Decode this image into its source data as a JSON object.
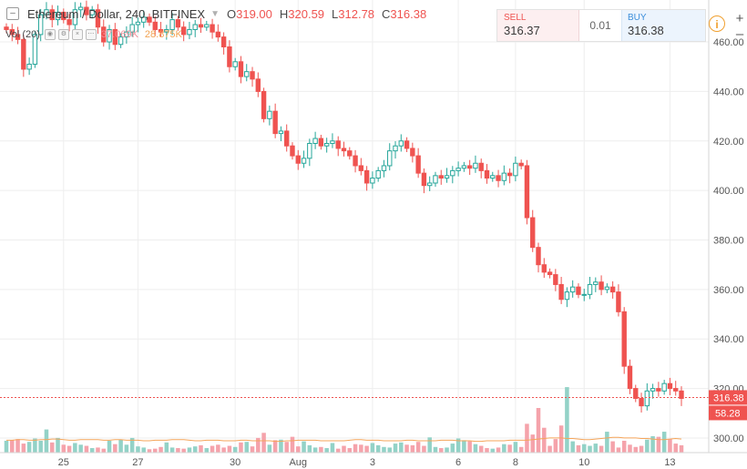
{
  "header": {
    "collapse_symbol": "–",
    "title": "Ethereum / Dollar, 240, BITFINEX",
    "open_label": "O",
    "open": "319.00",
    "high_label": "H",
    "high": "320.59",
    "low_label": "L",
    "low": "312.78",
    "close_label": "C",
    "close": "316.38"
  },
  "volume_indicator": {
    "label": "Vol (20)",
    "value_1": "37.069K",
    "value_2": "28.875K"
  },
  "trade_panel": {
    "sell_label": "SELL",
    "sell_price": "316.37",
    "spread": "0.01",
    "buy_label": "BUY",
    "buy_price": "316.38"
  },
  "controls": {
    "info_symbol": "i",
    "zoom_in": "+",
    "zoom_out": "–"
  },
  "colors": {
    "up": "#26a69a",
    "down": "#ef5350",
    "volume_up": "#93d2c7",
    "volume_down": "#f5a3ab",
    "volume_ma": "#f5a55a",
    "last_price_line": "#ef5350",
    "grid": "#eeeeee"
  },
  "chart_data": {
    "type": "candlestick",
    "title": "Ethereum / Dollar, 240, BITFINEX",
    "ylim": [
      293,
      474
    ],
    "y_ticks": [
      "300.00",
      "320.00",
      "340.00",
      "360.00",
      "380.00",
      "400.00",
      "420.00",
      "440.00",
      "460.00"
    ],
    "x_tick_labels": [
      "25",
      "27",
      "30",
      "Aug",
      "3",
      "6",
      "8",
      "10",
      "13"
    ],
    "last_price_label": "316.38",
    "volume_label": "58.28",
    "price": [
      465,
      463,
      461,
      449,
      451,
      463,
      471,
      473,
      469,
      472,
      469,
      467,
      473,
      474,
      471,
      473,
      466,
      460,
      465,
      459,
      462,
      464,
      467,
      468,
      470,
      468,
      465,
      464,
      465,
      469,
      466,
      463,
      465,
      467,
      466,
      467,
      464,
      462,
      458,
      450,
      452,
      446,
      448,
      445,
      440,
      429,
      432,
      423,
      424,
      418,
      414,
      411,
      413,
      419,
      421,
      418,
      419,
      420,
      417,
      416,
      414,
      410,
      408,
      403,
      405,
      408,
      410,
      416,
      418,
      420,
      417,
      414,
      407,
      402,
      403,
      406,
      405,
      406,
      408,
      409,
      410,
      409,
      411,
      408,
      405,
      406,
      404,
      407,
      406,
      411,
      410,
      389,
      377,
      370,
      367,
      366,
      362,
      356,
      359,
      361,
      358,
      358,
      362,
      363,
      360,
      361,
      359,
      351,
      329,
      320,
      316,
      313,
      319,
      320,
      319,
      322,
      320,
      319,
      316
    ],
    "volume_ma": [
      22,
      22,
      23,
      23,
      22,
      22,
      23,
      23,
      24,
      24,
      23,
      22,
      22,
      23,
      23,
      23,
      23,
      22,
      22,
      23,
      23,
      22,
      22,
      22,
      21,
      21,
      22,
      22,
      22,
      23,
      23,
      23,
      22,
      21,
      21,
      22,
      22,
      22,
      21,
      21,
      21,
      22,
      22,
      21,
      21,
      21,
      21,
      20,
      20,
      21,
      21,
      22,
      22,
      22,
      22,
      21,
      21,
      21,
      21,
      21,
      22,
      23,
      23,
      22,
      22,
      22,
      21,
      21,
      21,
      21,
      22,
      22,
      21,
      21,
      21,
      21,
      22,
      22,
      22,
      21,
      21,
      21,
      20,
      20,
      21,
      21,
      21,
      21,
      22,
      22,
      22,
      22,
      23,
      24,
      25,
      26,
      26,
      26,
      25,
      25,
      24,
      23,
      23,
      24,
      25,
      26,
      27,
      27,
      26,
      26,
      26,
      25,
      25,
      24,
      23,
      23,
      24,
      25,
      24
    ],
    "volume": [
      21,
      22,
      24,
      16,
      19,
      25,
      21,
      41,
      18,
      26,
      14,
      12,
      17,
      14,
      12,
      8,
      9,
      7,
      21,
      15,
      23,
      14,
      26,
      11,
      9,
      6,
      7,
      10,
      18,
      9,
      8,
      7,
      9,
      11,
      13,
      8,
      12,
      14,
      9,
      12,
      10,
      18,
      19,
      11,
      26,
      35,
      14,
      22,
      23,
      19,
      28,
      11,
      20,
      13,
      9,
      10,
      8,
      17,
      7,
      12,
      8,
      15,
      14,
      12,
      17,
      13,
      10,
      9,
      16,
      18,
      14,
      13,
      19,
      12,
      27,
      10,
      8,
      9,
      16,
      25,
      22,
      20,
      15,
      12,
      8,
      7,
      9,
      15,
      14,
      19,
      10,
      51,
      32,
      79,
      44,
      12,
      24,
      48,
      116,
      20,
      13,
      15,
      12,
      16,
      12,
      37,
      20,
      9,
      21,
      14,
      10,
      12,
      23,
      29,
      28,
      37,
      24,
      16,
      13
    ]
  }
}
